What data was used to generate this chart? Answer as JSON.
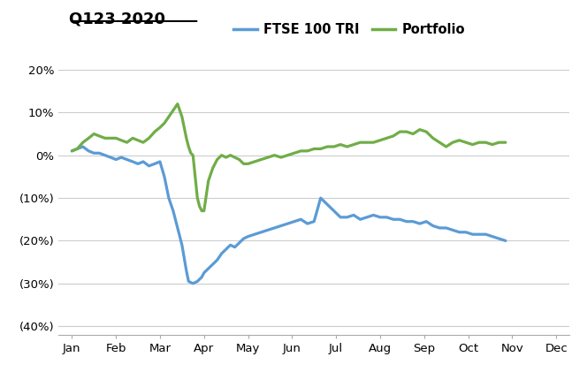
{
  "title": "Q123 2020",
  "ftse_label": "FTSE 100 TRI",
  "portfolio_label": "Portfolio",
  "ftse_color": "#5B9BD5",
  "portfolio_color": "#70AD47",
  "background_color": "#FFFFFF",
  "grid_color": "#CCCCCC",
  "ylim": [
    -0.42,
    0.25
  ],
  "yticks": [
    -0.4,
    -0.3,
    -0.2,
    -0.1,
    0.0,
    0.1,
    0.2
  ],
  "xlabel_months": [
    "Jan",
    "Feb",
    "Mar",
    "Apr",
    "May",
    "Jun",
    "Jul",
    "Aug",
    "Sep",
    "Oct",
    "Nov",
    "Dec"
  ],
  "ftse_dates": [
    0.0,
    0.12,
    0.25,
    0.38,
    0.5,
    0.62,
    0.75,
    0.88,
    1.0,
    1.12,
    1.25,
    1.38,
    1.5,
    1.62,
    1.75,
    1.88,
    2.0,
    2.1,
    2.2,
    2.3,
    2.4,
    2.5,
    2.55,
    2.6,
    2.65,
    2.75,
    2.85,
    2.95,
    3.0,
    3.1,
    3.2,
    3.3,
    3.4,
    3.5,
    3.6,
    3.7,
    3.8,
    3.9,
    4.0,
    4.15,
    4.3,
    4.45,
    4.6,
    4.75,
    4.9,
    5.05,
    5.2,
    5.35,
    5.5,
    5.65,
    5.8,
    5.95,
    6.1,
    6.25,
    6.4,
    6.55,
    6.7,
    6.85,
    7.0,
    7.15,
    7.3,
    7.45,
    7.6,
    7.75,
    7.9,
    8.05,
    8.2,
    8.35,
    8.5,
    8.65,
    8.8,
    8.95,
    9.1,
    9.25,
    9.4,
    9.55,
    9.7,
    9.85
  ],
  "ftse_values": [
    0.01,
    0.015,
    0.02,
    0.01,
    0.005,
    0.005,
    0.0,
    -0.005,
    -0.01,
    -0.005,
    -0.01,
    -0.015,
    -0.02,
    -0.015,
    -0.025,
    -0.02,
    -0.015,
    -0.05,
    -0.1,
    -0.13,
    -0.17,
    -0.21,
    -0.24,
    -0.27,
    -0.295,
    -0.3,
    -0.295,
    -0.285,
    -0.275,
    -0.265,
    -0.255,
    -0.245,
    -0.23,
    -0.22,
    -0.21,
    -0.215,
    -0.205,
    -0.195,
    -0.19,
    -0.185,
    -0.18,
    -0.175,
    -0.17,
    -0.165,
    -0.16,
    -0.155,
    -0.15,
    -0.16,
    -0.155,
    -0.1,
    -0.115,
    -0.13,
    -0.145,
    -0.145,
    -0.14,
    -0.15,
    -0.145,
    -0.14,
    -0.145,
    -0.145,
    -0.15,
    -0.15,
    -0.155,
    -0.155,
    -0.16,
    -0.155,
    -0.165,
    -0.17,
    -0.17,
    -0.175,
    -0.18,
    -0.18,
    -0.185,
    -0.185,
    -0.185,
    -0.19,
    -0.195,
    -0.2
  ],
  "port_dates": [
    0.0,
    0.12,
    0.25,
    0.38,
    0.5,
    0.62,
    0.75,
    0.88,
    1.0,
    1.12,
    1.25,
    1.38,
    1.5,
    1.62,
    1.75,
    1.88,
    2.0,
    2.1,
    2.2,
    2.3,
    2.4,
    2.5,
    2.55,
    2.6,
    2.65,
    2.7,
    2.75,
    2.8,
    2.85,
    2.9,
    2.95,
    3.0,
    3.1,
    3.2,
    3.3,
    3.4,
    3.5,
    3.6,
    3.7,
    3.8,
    3.9,
    4.0,
    4.15,
    4.3,
    4.45,
    4.6,
    4.75,
    4.9,
    5.05,
    5.2,
    5.35,
    5.5,
    5.65,
    5.8,
    5.95,
    6.1,
    6.25,
    6.4,
    6.55,
    6.7,
    6.85,
    7.0,
    7.15,
    7.3,
    7.45,
    7.6,
    7.75,
    7.9,
    8.05,
    8.2,
    8.35,
    8.5,
    8.65,
    8.8,
    8.95,
    9.1,
    9.25,
    9.4,
    9.55,
    9.7,
    9.85
  ],
  "port_values": [
    0.01,
    0.015,
    0.03,
    0.04,
    0.05,
    0.045,
    0.04,
    0.04,
    0.04,
    0.035,
    0.03,
    0.04,
    0.035,
    0.03,
    0.04,
    0.055,
    0.065,
    0.075,
    0.09,
    0.105,
    0.12,
    0.09,
    0.065,
    0.04,
    0.02,
    0.005,
    0.0,
    -0.05,
    -0.1,
    -0.12,
    -0.13,
    -0.13,
    -0.06,
    -0.03,
    -0.01,
    0.0,
    -0.005,
    0.0,
    -0.005,
    -0.01,
    -0.02,
    -0.02,
    -0.015,
    -0.01,
    -0.005,
    0.0,
    -0.005,
    0.0,
    0.005,
    0.01,
    0.01,
    0.015,
    0.015,
    0.02,
    0.02,
    0.025,
    0.02,
    0.025,
    0.03,
    0.03,
    0.03,
    0.035,
    0.04,
    0.045,
    0.055,
    0.055,
    0.05,
    0.06,
    0.055,
    0.04,
    0.03,
    0.02,
    0.03,
    0.035,
    0.03,
    0.025,
    0.03,
    0.03,
    0.025,
    0.03,
    0.03
  ]
}
